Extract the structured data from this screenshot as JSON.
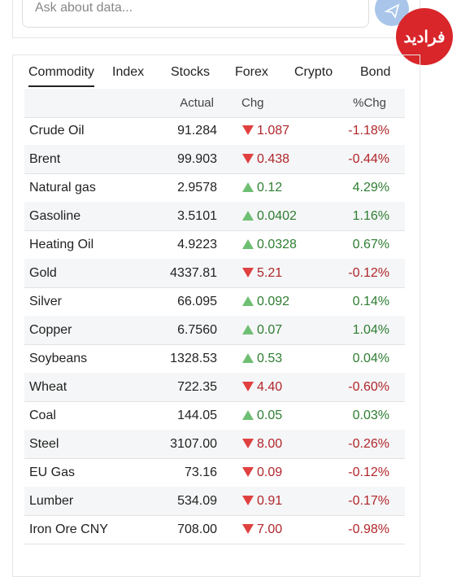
{
  "search": {
    "placeholder": "Ask about data..."
  },
  "logo": "فرادید",
  "tabs": [
    "Commodity",
    "Index",
    "Stocks",
    "Forex",
    "Crypto",
    "Bond"
  ],
  "active_tab": 0,
  "table": {
    "columns": [
      "Actual",
      "Chg",
      "%Chg"
    ],
    "rows": [
      {
        "name": "Crude Oil",
        "actual": "91.284",
        "direction": "down",
        "chg": "1.087",
        "pct": "-1.18%"
      },
      {
        "name": "Brent",
        "actual": "99.903",
        "direction": "down",
        "chg": "0.438",
        "pct": "-0.44%"
      },
      {
        "name": "Natural gas",
        "actual": "2.9578",
        "direction": "up",
        "chg": "0.12",
        "pct": "4.29%"
      },
      {
        "name": "Gasoline",
        "actual": "3.5101",
        "direction": "up",
        "chg": "0.0402",
        "pct": "1.16%"
      },
      {
        "name": "Heating Oil",
        "actual": "4.9223",
        "direction": "up",
        "chg": "0.0328",
        "pct": "0.67%"
      },
      {
        "name": "Gold",
        "actual": "4337.81",
        "direction": "down",
        "chg": "5.21",
        "pct": "-0.12%"
      },
      {
        "name": "Silver",
        "actual": "66.095",
        "direction": "up",
        "chg": "0.092",
        "pct": "0.14%"
      },
      {
        "name": "Copper",
        "actual": "6.7560",
        "direction": "up",
        "chg": "0.07",
        "pct": "1.04%"
      },
      {
        "name": "Soybeans",
        "actual": "1328.53",
        "direction": "up",
        "chg": "0.53",
        "pct": "0.04%"
      },
      {
        "name": "Wheat",
        "actual": "722.35",
        "direction": "down",
        "chg": "4.40",
        "pct": "-0.60%"
      },
      {
        "name": "Coal",
        "actual": "144.05",
        "direction": "up",
        "chg": "0.05",
        "pct": "0.03%"
      },
      {
        "name": "Steel",
        "actual": "3107.00",
        "direction": "down",
        "chg": "8.00",
        "pct": "-0.26%"
      },
      {
        "name": "EU Gas",
        "actual": "73.16",
        "direction": "down",
        "chg": "0.09",
        "pct": "-0.12%"
      },
      {
        "name": "Lumber",
        "actual": "534.09",
        "direction": "down",
        "chg": "0.91",
        "pct": "-0.17%"
      },
      {
        "name": "Iron Ore CNY",
        "actual": "708.00",
        "direction": "down",
        "chg": "7.00",
        "pct": "-0.98%"
      }
    ]
  }
}
